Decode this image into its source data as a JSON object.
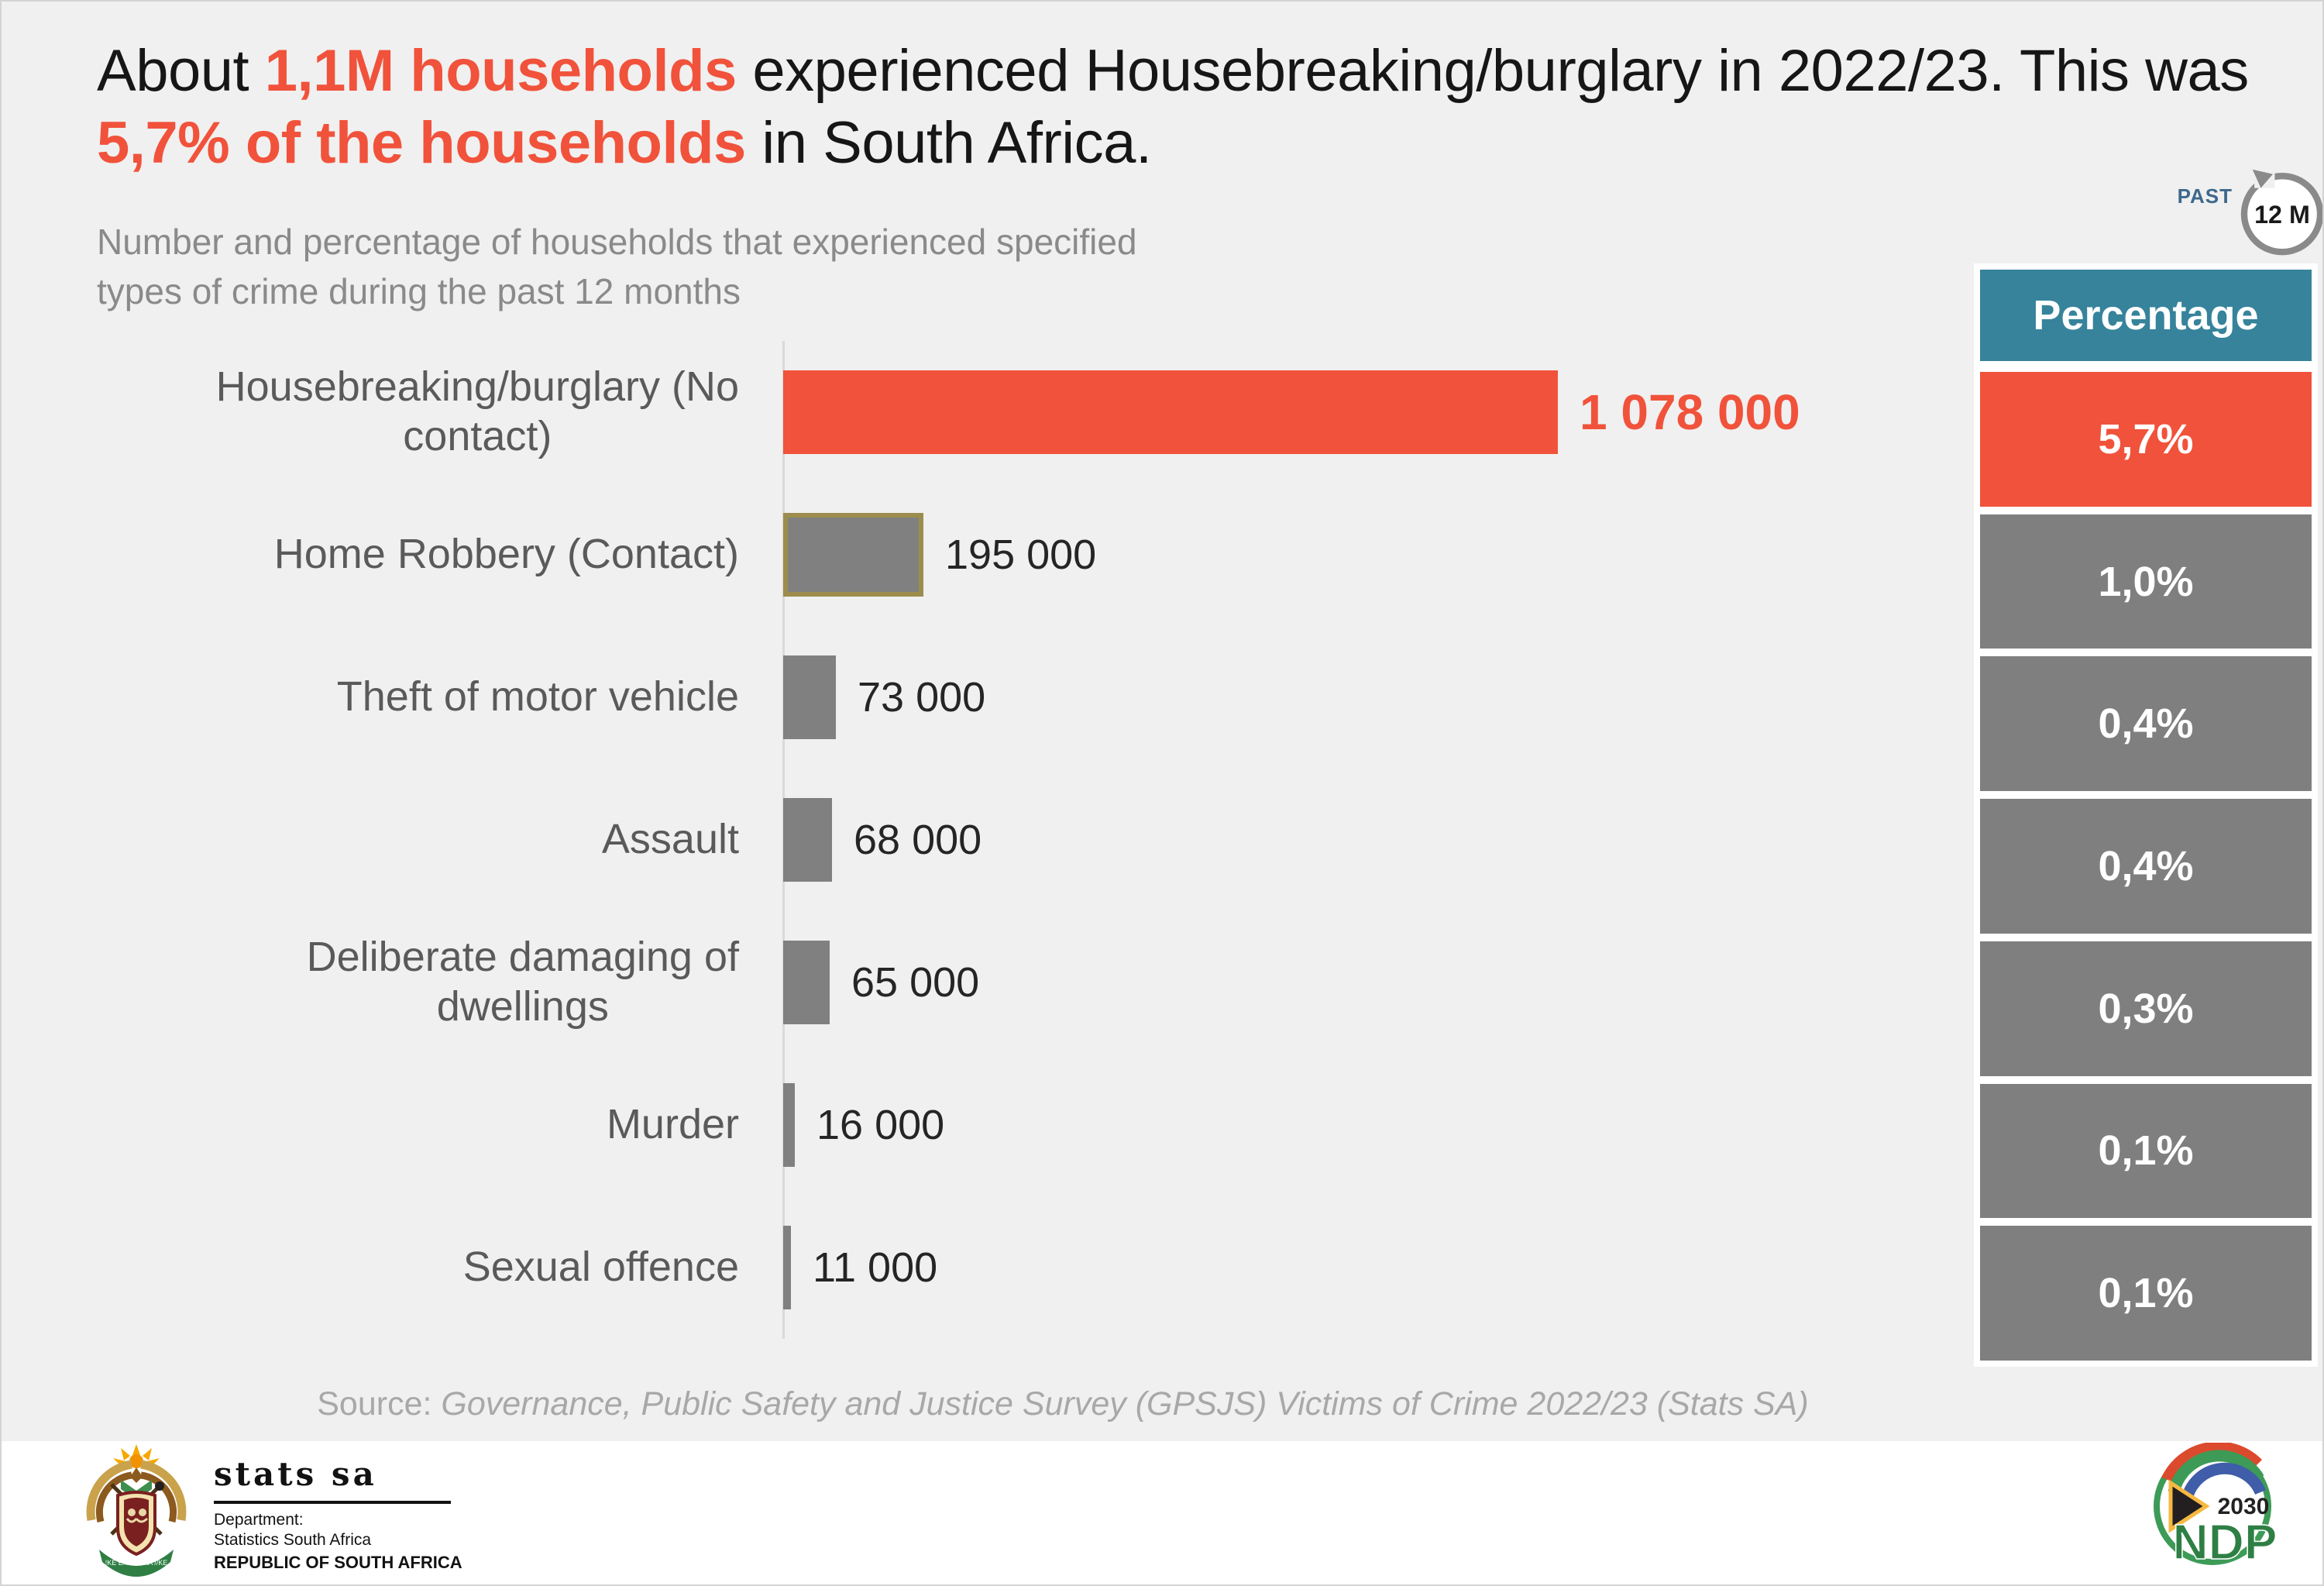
{
  "title": {
    "segments": [
      "About ",
      "1,1M households",
      " experienced Housebreaking/burglary in 2022/23. This was",
      "5,7% of the households",
      " in South Africa."
    ]
  },
  "subtitle": {
    "line1": "Number and percentage of households that experienced specified",
    "line2": "types of crime during the past 12 months"
  },
  "past12": {
    "label": "PAST",
    "months": "12 M"
  },
  "chart_data": {
    "type": "bar",
    "orientation": "horizontal",
    "title": "Number and percentage of households that experienced specified types of crime during the past 12 months",
    "categories": [
      "Housebreaking/burglary (No contact)",
      "Home Robbery (Contact)",
      "Theft of motor vehicle",
      "Assault",
      "Deliberate damaging of dwellings",
      "Murder",
      "Sexual offence"
    ],
    "label_lines": [
      [
        "Housebreaking/burglary (No",
        "contact)"
      ],
      [
        "Home Robbery (Contact)"
      ],
      [
        "Theft of motor vehicle"
      ],
      [
        "Assault"
      ],
      [
        "Deliberate damaging of",
        "dwellings"
      ],
      [
        "Murder"
      ],
      [
        "Sexual offence"
      ]
    ],
    "values": [
      1078000,
      195000,
      73000,
      68000,
      65000,
      16000,
      11000
    ],
    "value_labels": [
      "1 078 000",
      "195 000",
      "73 000",
      "68 000",
      "65 000",
      "16 000",
      "11 000"
    ],
    "percentages": [
      "5,7%",
      "1,0%",
      "0,4%",
      "0,4%",
      "0,3%",
      "0,1%",
      "0,1%"
    ],
    "percent_header": "Percentage",
    "xlim": [
      0,
      1078000
    ],
    "highlight_index": 0,
    "selected_index": 1,
    "grid": false,
    "legend": "none"
  },
  "source": {
    "prefix": "Source: ",
    "text": "Governance, Public Safety and Justice Survey (GPSJS) Victims of Crime 2022/23 (Stats SA)"
  },
  "footer": {
    "statssa": {
      "wordmark": "stats sa",
      "dept_label": "Department:",
      "dept_name": "Statistics South Africa",
      "country": "REPUBLIC OF SOUTH AFRICA",
      "motto": "!KE E: /XARRA //KE"
    },
    "ndp": {
      "year": "2030",
      "name": "NDP"
    }
  },
  "colors": {
    "accent": "#F1523B",
    "teal": "#36839B",
    "bar_gray": "#808080",
    "selected_border": "#9D8D4D",
    "background": "#F0F0F0"
  }
}
